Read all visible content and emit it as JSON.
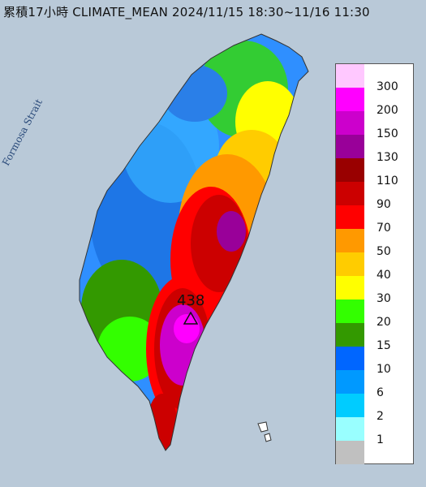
{
  "title": "累積17小時 CLIMATE_MEAN 2024/11/15 18:30~11/16 11:30",
  "strait_label": "Formosa Strait",
  "peak": {
    "value": "438",
    "marker_icon": "triangle-marker-icon"
  },
  "legend": [
    {
      "label": "300",
      "color": "#ffc8ff"
    },
    {
      "label": "200",
      "color": "#ff00ff"
    },
    {
      "label": "150",
      "color": "#cc00cc"
    },
    {
      "label": "130",
      "color": "#990099"
    },
    {
      "label": "110",
      "color": "#990000"
    },
    {
      "label": "90",
      "color": "#cc0000"
    },
    {
      "label": "70",
      "color": "#ff0000"
    },
    {
      "label": "50",
      "color": "#ff9900"
    },
    {
      "label": "40",
      "color": "#ffcc00"
    },
    {
      "label": "30",
      "color": "#ffff00"
    },
    {
      "label": "20",
      "color": "#33ff00"
    },
    {
      "label": "15",
      "color": "#339900"
    },
    {
      "label": "10",
      "color": "#0066ff"
    },
    {
      "label": "6",
      "color": "#0099ff"
    },
    {
      "label": "2",
      "color": "#00ccff"
    },
    {
      "label": "1",
      "color": "#99ffff"
    },
    {
      "label": "",
      "color": "#c0c0c0"
    }
  ]
}
